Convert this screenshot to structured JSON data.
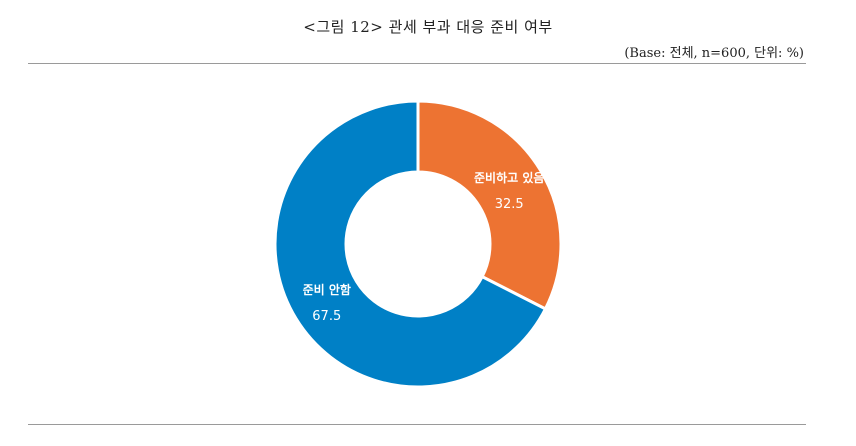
{
  "figure": {
    "title": "<그림 12> 관세 부과 대응 준비 여부",
    "base_note": "(Base: 전체, n=600, 단위: %)"
  },
  "chart_data": {
    "type": "pie",
    "donut": true,
    "title": "",
    "slices": [
      {
        "label": "준비하고 있음",
        "value": 32.5,
        "color": "#ED7332"
      },
      {
        "label": "준비 안함",
        "value": 67.5,
        "color": "#0080C6"
      }
    ],
    "start_angle_deg": 0,
    "direction": "clockwise",
    "legend": "none",
    "slice_border_color": "#ffffff"
  }
}
